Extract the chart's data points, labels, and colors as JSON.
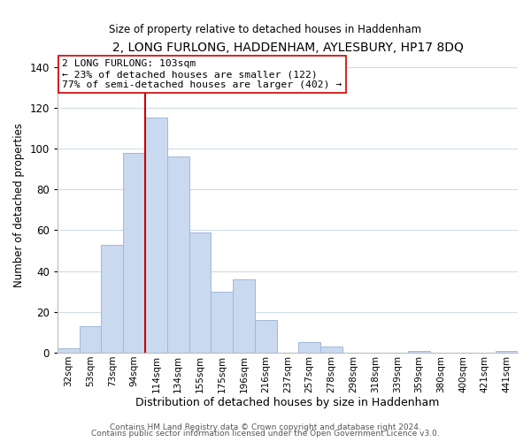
{
  "title": "2, LONG FURLONG, HADDENHAM, AYLESBURY, HP17 8DQ",
  "subtitle": "Size of property relative to detached houses in Haddenham",
  "xlabel": "Distribution of detached houses by size in Haddenham",
  "ylabel": "Number of detached properties",
  "bar_labels": [
    "32sqm",
    "53sqm",
    "73sqm",
    "94sqm",
    "114sqm",
    "134sqm",
    "155sqm",
    "175sqm",
    "196sqm",
    "216sqm",
    "237sqm",
    "257sqm",
    "278sqm",
    "298sqm",
    "318sqm",
    "339sqm",
    "359sqm",
    "380sqm",
    "400sqm",
    "421sqm",
    "441sqm"
  ],
  "bar_values": [
    2,
    13,
    53,
    98,
    115,
    96,
    59,
    30,
    36,
    16,
    0,
    5,
    3,
    0,
    0,
    0,
    1,
    0,
    0,
    0,
    1
  ],
  "bar_color": "#c9d9f0",
  "bar_edge_color": "#a0b8d8",
  "vline_x": 3.5,
  "vline_color": "#cc0000",
  "ylim": [
    0,
    145
  ],
  "yticks": [
    0,
    20,
    40,
    60,
    80,
    100,
    120,
    140
  ],
  "annotation_line1": "2 LONG FURLONG: 103sqm",
  "annotation_line2": "← 23% of detached houses are smaller (122)",
  "annotation_line3": "77% of semi-detached houses are larger (402) →",
  "annotation_box_edgecolor": "#cc0000",
  "footer_line1": "Contains HM Land Registry data © Crown copyright and database right 2024.",
  "footer_line2": "Contains public sector information licensed under the Open Government Licence v3.0.",
  "background_color": "#ffffff",
  "grid_color": "#d0dce8"
}
